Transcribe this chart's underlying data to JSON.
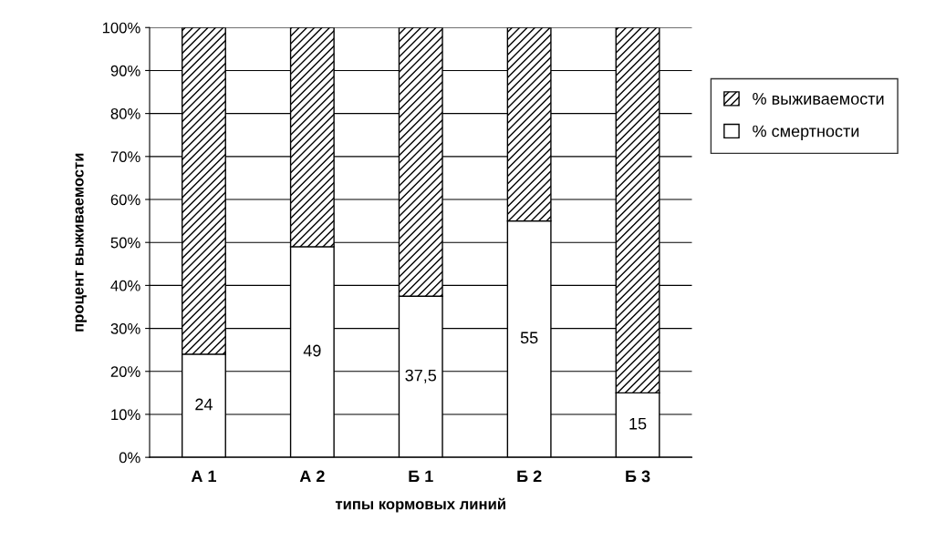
{
  "chart_data": {
    "type": "bar",
    "stacked": true,
    "xlabel": "типы кормовых линий",
    "ylabel": "процент выживаемости",
    "categories": [
      "А 1",
      "А 2",
      "Б 1",
      "Б 2",
      "Б 3"
    ],
    "series": [
      {
        "name": "% смертности",
        "color": "#ffffff",
        "values": [
          24,
          49,
          37.5,
          55,
          15
        ],
        "value_labels": [
          "24",
          "49",
          "37,5",
          "55",
          "15"
        ]
      },
      {
        "name": "% выживаемости",
        "color": "#000000",
        "values": [
          76,
          51,
          62.5,
          45,
          85
        ]
      }
    ],
    "ylim": [
      0,
      100
    ],
    "yticks": [
      {
        "value": 0,
        "label": "0%"
      },
      {
        "value": 10,
        "label": "10%"
      },
      {
        "value": 20,
        "label": "20%"
      },
      {
        "value": 30,
        "label": "30%"
      },
      {
        "value": 40,
        "label": "40%"
      },
      {
        "value": 50,
        "label": "50%"
      },
      {
        "value": 60,
        "label": "60%"
      },
      {
        "value": 70,
        "label": "70%"
      },
      {
        "value": 80,
        "label": "80%"
      },
      {
        "value": 90,
        "label": "90%"
      },
      {
        "value": 100,
        "label": "100%"
      }
    ],
    "grid": "y",
    "legend": "top right"
  }
}
